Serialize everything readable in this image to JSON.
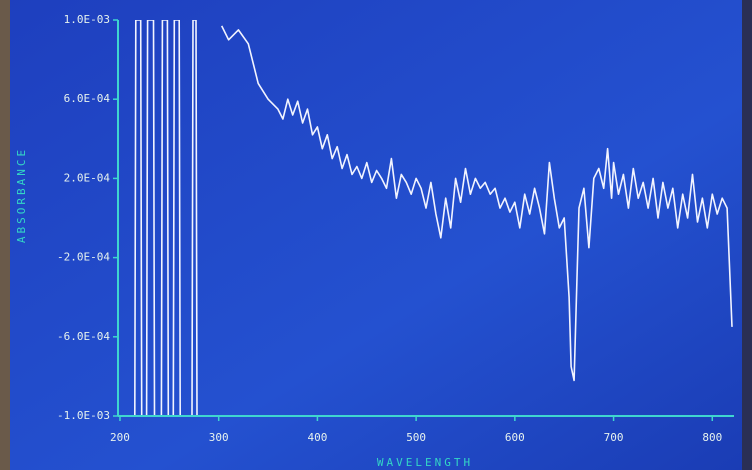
{
  "chart_data": {
    "type": "line",
    "xlabel": "WAVELENGTH",
    "ylabel": "ABSORBANCE",
    "xlim": [
      198,
      822
    ],
    "xticks": [
      200,
      300,
      400,
      500,
      600,
      700,
      800
    ],
    "ylim": [
      -0.001,
      0.001
    ],
    "yticks": [
      {
        "value": 0.001,
        "label": "1.0E-03"
      },
      {
        "value": 0.0006,
        "label": "6.0E-04"
      },
      {
        "value": 0.0002,
        "label": "2.0E-04"
      },
      {
        "value": -0.0002,
        "label": "-2.0E-04"
      },
      {
        "value": -0.0006,
        "label": "-6.0E-04"
      },
      {
        "value": -0.001,
        "label": "-1.0E-03"
      }
    ],
    "series": [
      {
        "name": "ABSORBANCE",
        "color": "#f2f4ff",
        "x": [
          215,
          216,
          221,
          222,
          227,
          228,
          234,
          235,
          242,
          243,
          248,
          249,
          254,
          255,
          260,
          261,
          273,
          274,
          277,
          278,
          290,
          303,
          310,
          320,
          330,
          340,
          350,
          360,
          365,
          370,
          375,
          380,
          385,
          390,
          395,
          400,
          405,
          410,
          415,
          420,
          425,
          430,
          435,
          440,
          445,
          450,
          455,
          460,
          465,
          470,
          475,
          480,
          485,
          490,
          495,
          500,
          505,
          510,
          515,
          520,
          525,
          530,
          535,
          540,
          545,
          550,
          555,
          560,
          565,
          570,
          575,
          580,
          585,
          590,
          595,
          600,
          605,
          610,
          615,
          620,
          625,
          630,
          635,
          640,
          645,
          650,
          655,
          657,
          660,
          663,
          665,
          670,
          675,
          680,
          685,
          690,
          694,
          698,
          700,
          705,
          710,
          715,
          720,
          725,
          730,
          735,
          740,
          745,
          750,
          755,
          760,
          765,
          770,
          775,
          780,
          785,
          790,
          795,
          800,
          805,
          810,
          815,
          820
        ],
        "values": [
          -0.001,
          0.001,
          0.001,
          -0.001,
          -0.001,
          0.001,
          0.001,
          -0.001,
          -0.001,
          0.001,
          0.001,
          -0.001,
          -0.001,
          0.001,
          0.001,
          -0.001,
          -0.001,
          0.001,
          0.001,
          -0.001,
          null,
          0.00097,
          0.0009,
          0.00095,
          0.00088,
          0.00068,
          0.0006,
          0.00055,
          0.0005,
          0.0006,
          0.00052,
          0.00059,
          0.00048,
          0.00055,
          0.00042,
          0.00046,
          0.00035,
          0.00042,
          0.0003,
          0.00036,
          0.00025,
          0.00032,
          0.00022,
          0.00026,
          0.0002,
          0.00028,
          0.00018,
          0.00024,
          0.0002,
          0.00015,
          0.0003,
          0.0001,
          0.00022,
          0.00018,
          0.00012,
          0.0002,
          0.00015,
          5e-05,
          0.00018,
          2e-05,
          -0.0001,
          0.0001,
          -5e-05,
          0.0002,
          8e-05,
          0.00025,
          0.00012,
          0.0002,
          0.00015,
          0.00018,
          0.00012,
          0.00015,
          5e-05,
          0.0001,
          3e-05,
          8e-05,
          -5e-05,
          0.00012,
          2e-05,
          0.00015,
          5e-05,
          -8e-05,
          0.00028,
          0.0001,
          -5e-05,
          0.0,
          -0.0004,
          -0.00075,
          -0.00082,
          -0.0003,
          5e-05,
          0.00015,
          -0.00015,
          0.0002,
          0.00025,
          0.00015,
          0.00035,
          0.0001,
          0.00028,
          0.00012,
          0.00022,
          5e-05,
          0.00025,
          0.0001,
          0.00018,
          5e-05,
          0.0002,
          0.0,
          0.00018,
          5e-05,
          0.00015,
          -5e-05,
          0.00012,
          0.0,
          0.00022,
          -2e-05,
          0.0001,
          -5e-05,
          0.00012,
          2e-05,
          0.0001,
          5e-05,
          -0.00055
        ]
      }
    ]
  }
}
